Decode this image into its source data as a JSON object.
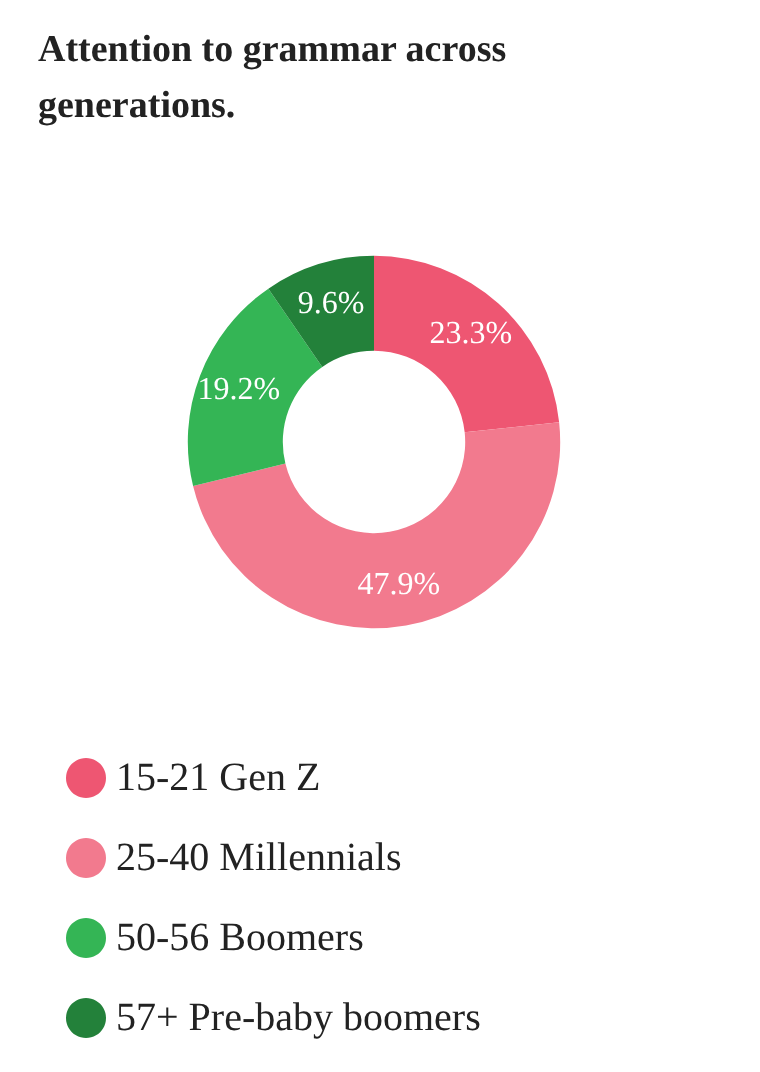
{
  "chart_data": {
    "type": "donut",
    "title": "Attention to grammar across generations.",
    "categories": [
      "15-21 Gen Z",
      "25-40 Millennials",
      "50-56 Boomers",
      "57+ Pre-baby boomers"
    ],
    "values": [
      23.3,
      47.9,
      19.2,
      9.6
    ],
    "colors": [
      "#ee5672",
      "#f27a8e",
      "#34b555",
      "#23813a"
    ],
    "value_labels": [
      "23.3%",
      "47.9%",
      "19.2%",
      "9.6%"
    ],
    "legend": "bottom"
  }
}
